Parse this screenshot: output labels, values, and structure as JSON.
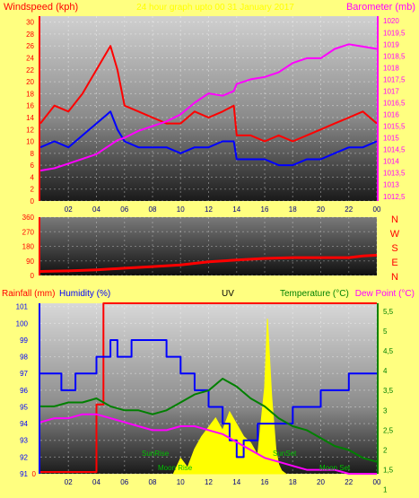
{
  "header": {
    "left_title": "Windspeed (kph)",
    "center_title": "24 hour graph upto 00 31 January 2017",
    "right_title": "Barometer (mb)"
  },
  "compass": [
    "N",
    "W",
    "S",
    "E",
    "N"
  ],
  "bottom_labels": {
    "rainfall": "Rainfall (mm)",
    "humidity": "Humidity (%)",
    "uv": "UV",
    "temperature": "Temperature (°C)",
    "dewpoint": "Dew Point (°C)"
  },
  "annotations": {
    "sunrise": "SunRise",
    "moonrise": "Moon Rise",
    "sunset": "SunSet",
    "moonset": "Moon Set"
  },
  "colors": {
    "background": "#ffff80",
    "wind_gust": "#ff0000",
    "wind_avg": "#0000ff",
    "barometer": "#ff00ff",
    "wind_dir": "#ff0000",
    "rain": "#ff0000",
    "humidity": "#0000ff",
    "uv": "#ffff00",
    "temperature": "#008000",
    "dewpoint": "#ff00ff"
  },
  "chart_data": [
    {
      "type": "line",
      "panel": "wind-barometer",
      "x_ticks": [
        "02",
        "04",
        "06",
        "08",
        "10",
        "12",
        "14",
        "16",
        "18",
        "20",
        "22",
        "00"
      ],
      "y_left_ticks": [
        "0",
        "2",
        "4",
        "6",
        "8",
        "10",
        "12",
        "14",
        "16",
        "18",
        "20",
        "22",
        "24",
        "26",
        "28",
        "30"
      ],
      "y_right_ticks": [
        "1012,5",
        "1013",
        "1013,5",
        "1014",
        "1014,5",
        "1015",
        "1015,5",
        "1016",
        "1016,5",
        "1017",
        "1017,5",
        "1018",
        "1018,5",
        "1019",
        "1019,5",
        "1020"
      ],
      "ylim_left": [
        0,
        31
      ],
      "ylim_right": [
        1012.3,
        1020.2
      ],
      "x_hours": [
        0,
        1,
        2,
        3,
        4,
        4.5,
        5,
        5.5,
        6,
        7,
        8,
        9,
        10,
        11,
        12,
        13,
        13.8,
        14,
        15,
        16,
        17,
        18,
        19,
        20,
        21,
        22,
        23,
        24
      ],
      "series": [
        {
          "values": [
            13,
            16,
            15,
            18,
            22,
            24,
            26,
            22,
            16,
            15,
            14,
            13,
            13,
            15,
            14,
            15,
            16,
            11,
            11,
            10,
            11,
            10,
            11,
            12,
            13,
            14,
            15,
            13
          ]
        },
        {
          "values": [
            9,
            10,
            9,
            11,
            13,
            14,
            15,
            12,
            10,
            9,
            9,
            9,
            8,
            9,
            9,
            10,
            10,
            7,
            7,
            7,
            6,
            6,
            7,
            7,
            8,
            9,
            9,
            10
          ]
        },
        {
          "values": [
            1013.6,
            1013.7,
            1013.9,
            1014.1,
            1014.3,
            1014.5,
            1014.7,
            1014.9,
            1015.0,
            1015.3,
            1015.5,
            1015.7,
            1016.0,
            1016.5,
            1016.9,
            1016.8,
            1017.0,
            1017.3,
            1017.5,
            1017.6,
            1017.8,
            1018.2,
            1018.4,
            1018.4,
            1018.8,
            1019.0,
            1018.9,
            1018.8
          ]
        }
      ]
    },
    {
      "type": "line",
      "panel": "wind-direction",
      "y_ticks": [
        "0",
        "90",
        "180",
        "270",
        "360"
      ],
      "ylim": [
        0,
        360
      ],
      "x_hours": [
        0,
        2,
        4,
        6,
        8,
        10,
        12,
        14,
        16,
        18,
        20,
        22,
        23,
        24
      ],
      "series": [
        {
          "values": [
            25,
            28,
            35,
            45,
            55,
            65,
            85,
            95,
            105,
            110,
            110,
            110,
            120,
            125
          ]
        }
      ]
    },
    {
      "type": "line",
      "panel": "rain-humidity-temperature",
      "y_left_ticks": [
        "91",
        "92",
        "93",
        "94",
        "95",
        "96",
        "97",
        "98",
        "99",
        "100",
        "101"
      ],
      "ylim_left": [
        91,
        101.2
      ],
      "y_rain_ticks": [
        "0"
      ],
      "y_right_ticks": [
        "1",
        "1,5",
        "2",
        "2,5",
        "3",
        "3,5",
        "4",
        "4,5",
        "5",
        "5,5"
      ],
      "ylim_right": [
        1.4,
        5.7
      ],
      "rain": {
        "x_hours": [
          0,
          4.0,
          4.0,
          4.5,
          4.5,
          24
        ],
        "values": [
          0,
          0,
          0.4,
          0.4,
          1,
          1
        ]
      },
      "humidity": {
        "x_hours": [
          0,
          1.5,
          1.5,
          2.5,
          2.5,
          4,
          4,
          5,
          5,
          5.5,
          5.5,
          6.5,
          6.5,
          9,
          9,
          10,
          10,
          11,
          11,
          12,
          12,
          13,
          13,
          13.5,
          13.5,
          14,
          14,
          14.5,
          14.5,
          15.5,
          15.5,
          16.5,
          16.5,
          18,
          18,
          19,
          19,
          20,
          20,
          21,
          21,
          22,
          22,
          23,
          23,
          24
        ],
        "values": [
          97,
          97,
          96,
          96,
          97,
          97,
          98,
          98,
          99,
          99,
          98,
          98,
          99,
          99,
          98,
          98,
          97,
          97,
          96,
          96,
          95,
          95,
          94,
          94,
          93,
          93,
          92,
          92,
          93,
          93,
          94,
          94,
          94,
          94,
          95,
          95,
          95,
          95,
          96,
          96,
          96,
          96,
          97,
          97,
          97,
          97
        ]
      },
      "uv": {
        "x_hours": [
          9.5,
          10,
          10.5,
          11,
          11.5,
          12,
          12.5,
          13,
          13.5,
          14,
          14.5,
          15,
          15.5,
          16,
          16.2,
          16.5,
          16.8,
          17,
          17.2,
          17.5
        ],
        "values": [
          0,
          0.5,
          0.2,
          0.8,
          1.2,
          1.5,
          1.8,
          1.4,
          2.0,
          1.6,
          1.2,
          1.0,
          0.6,
          2.8,
          5.0,
          2.5,
          0.8,
          0.3,
          0.1,
          0
        ]
      },
      "temperature": {
        "x_hours": [
          0,
          1,
          2,
          3,
          4,
          5,
          6,
          7,
          8,
          9,
          10,
          11,
          12,
          13,
          14,
          15,
          16,
          17,
          18,
          19,
          20,
          21,
          22,
          23,
          24
        ],
        "values": [
          3.1,
          3.1,
          3.2,
          3.2,
          3.3,
          3.1,
          3.0,
          3.0,
          2.9,
          3.0,
          3.2,
          3.4,
          3.5,
          3.8,
          3.6,
          3.3,
          3.1,
          2.8,
          2.6,
          2.5,
          2.3,
          2.1,
          2.0,
          1.8,
          1.7
        ]
      },
      "dewpoint": {
        "x_hours": [
          0,
          1,
          2,
          3,
          4,
          5,
          6,
          7,
          8,
          9,
          10,
          11,
          12,
          13,
          14,
          15,
          16,
          17,
          18,
          19,
          20,
          21,
          22,
          23,
          24
        ],
        "values": [
          2.7,
          2.8,
          2.8,
          2.9,
          2.9,
          2.8,
          2.7,
          2.6,
          2.5,
          2.5,
          2.6,
          2.6,
          2.5,
          2.4,
          2.2,
          2.0,
          1.8,
          1.7,
          1.6,
          1.5,
          1.5,
          1.5,
          1.4,
          1.4,
          1.4
        ]
      }
    }
  ]
}
